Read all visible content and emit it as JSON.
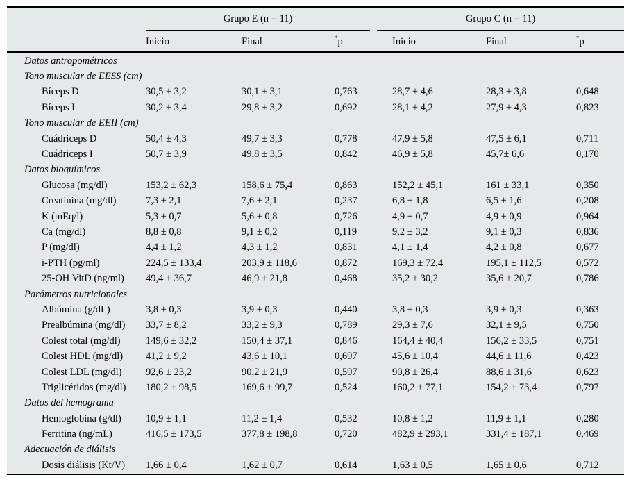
{
  "colors": {
    "table_background": "#e5e9ea",
    "rule": "#000000",
    "text": "#000000",
    "page_background": "#ffffff"
  },
  "table": {
    "groups": [
      {
        "label": "Grupo E (n = 11)"
      },
      {
        "label": "Grupo C (n = 11)"
      }
    ],
    "subheaders": [
      {
        "label": "Inicio"
      },
      {
        "label": "Final"
      },
      {
        "label": "p",
        "star": "*"
      },
      {
        "label": "Inicio"
      },
      {
        "label": "Final"
      },
      {
        "label": "p",
        "star": "*"
      }
    ],
    "rows": [
      {
        "type": "section",
        "label": "Datos antropométricos"
      },
      {
        "type": "section",
        "label": "Tono muscular de EESS (cm)"
      },
      {
        "type": "data",
        "label": "Bíceps D",
        "values": [
          "30,5 ± 3,2",
          "30,1 ± 3,1",
          "0,763",
          "28,7 ± 4,6",
          "28,3 ± 3,8",
          "0,648"
        ]
      },
      {
        "type": "data",
        "label": "Bíceps I",
        "values": [
          "30,2 ± 3,4",
          "29,8 ± 3,2",
          "0,692",
          "28,1 ± 4,2",
          "27,9 ± 4,3",
          "0,823"
        ]
      },
      {
        "type": "section",
        "label": "Tono muscular de EEII (cm)"
      },
      {
        "type": "data",
        "label": "Cuádriceps D",
        "values": [
          "50,4 ± 4,3",
          "49,7 ± 3,3",
          "0,778",
          "47,9 ± 5,8",
          "47,5 ± 6,1",
          "0,711"
        ]
      },
      {
        "type": "data",
        "label": "Cuádriceps I",
        "values": [
          "50,7 ± 3,9",
          "49,8 ± 3,5",
          "0,842",
          "46,9 ± 5,8",
          "45,7± 6,6",
          "0,170"
        ]
      },
      {
        "type": "section",
        "label": "Datos bioquímicos"
      },
      {
        "type": "data",
        "label": "Glucosa (mg/dl)",
        "values": [
          "153,2 ± 62,3",
          "158,6 ± 75,4",
          "0,863",
          "152,2 ± 45,1",
          "161 ± 33,1",
          "0,350"
        ]
      },
      {
        "type": "data",
        "label": "Creatinina (mg/dl)",
        "values": [
          "7,3 ± 2,1",
          "7,6 ± 2,1",
          "0,237",
          "6,8 ± 1,8",
          "6,5 ± 1,6",
          "0,208"
        ]
      },
      {
        "type": "data",
        "label": "K (mEq/l)",
        "values": [
          "5,3 ± 0,7",
          "5,6 ± 0,8",
          "0,726",
          "4,9 ± 0,7",
          "4,9 ± 0,9",
          "0,964"
        ]
      },
      {
        "type": "data",
        "label": "Ca (mg/dl)",
        "values": [
          "8,8 ± 0,8",
          "9,1 ± 0,2",
          "0,119",
          "9,2 ± 3,2",
          "9,1 ± 0,3",
          "0,836"
        ]
      },
      {
        "type": "data",
        "label": "P (mg/dl)",
        "values": [
          "4,4 ± 1,2",
          "4,3 ± 1,2",
          "0,831",
          "4,1 ± 1,4",
          "4,2 ± 0,8",
          "0,677"
        ]
      },
      {
        "type": "data",
        "label": "i-PTH (pg/ml)",
        "values": [
          "224,5 ± 133,4",
          "203,9 ± 118,6",
          "0,872",
          "169,3 ± 72,4",
          "195,1 ± 112,5",
          "0,572"
        ]
      },
      {
        "type": "data",
        "label": "25-OH VitD (ng/ml)",
        "values": [
          "49,4 ± 36,7",
          "46,9 ± 21,8",
          "0,468",
          "35,2 ± 30,2",
          "35,6 ± 20,7",
          "0,786"
        ]
      },
      {
        "type": "section",
        "label": "Parámetros nutricionales"
      },
      {
        "type": "data",
        "label": "Albúmina (g/dL)",
        "values": [
          "3,8 ± 0,3",
          "3,9 ± 0,3",
          "0,440",
          "3,8 ± 0,3",
          "3,9 ± 0,3",
          "0,363"
        ]
      },
      {
        "type": "data",
        "label": "Prealbúmina (mg/dl)",
        "values": [
          "33,7 ± 8,2",
          "33,2 ± 9,3",
          "0,789",
          "29,3 ± 7,6",
          "32,1 ± 9,5",
          "0,750"
        ]
      },
      {
        "type": "data",
        "label": "Colest total (mg/dl)",
        "values": [
          "149,6 ± 32,2",
          "150,4 ± 37,1",
          "0,846",
          "164,4 ± 40,4",
          "156,2 ± 33,5",
          "0,751"
        ]
      },
      {
        "type": "data",
        "label": "Colest HDL (mg/dl)",
        "values": [
          "41,2 ± 9,2",
          "43,6 ± 10,1",
          "0,697",
          "45,6 ± 10,4",
          "44,6 ± 11,6",
          "0,423"
        ]
      },
      {
        "type": "data",
        "label": "Colest LDL (mg/dl)",
        "values": [
          "92,6 ± 23,2",
          "90,2 ± 21,9",
          "0,597",
          "90,8 ± 26,4",
          "88,6 ± 31,6",
          "0,623"
        ]
      },
      {
        "type": "data",
        "label": "Triglicéridos (mg/dl)",
        "values": [
          "180,2 ± 98,5",
          "169,6 ± 99,7",
          "0,524",
          "160,2 ± 77,1",
          "154,2 ± 73,4",
          "0,797"
        ]
      },
      {
        "type": "section",
        "label": "Datos del hemograma"
      },
      {
        "type": "data",
        "label": "Hemoglobina (g/dl)",
        "values": [
          "10,9 ± 1,1",
          "11,2 ± 1,4",
          "0,532",
          "10,8 ± 1,2",
          "11,9 ± 1,1",
          "0,280"
        ]
      },
      {
        "type": "data",
        "label": "Ferritina (ng/mL)",
        "values": [
          "416,5 ± 173,5",
          "377,8 ± 198,8",
          "0,720",
          "482,9 ± 293,1",
          "331,4 ± 187,1",
          "0,469"
        ]
      },
      {
        "type": "section",
        "label": "Adecuación de diálisis"
      },
      {
        "type": "data",
        "label": "Dosis diálisis (Kt/V)",
        "values": [
          "1,66 ± 0,4",
          "1,62 ± 0,7",
          "0,614",
          "1,63 ± 0,5",
          "1,65 ± 0,6",
          "0,712"
        ]
      }
    ]
  }
}
